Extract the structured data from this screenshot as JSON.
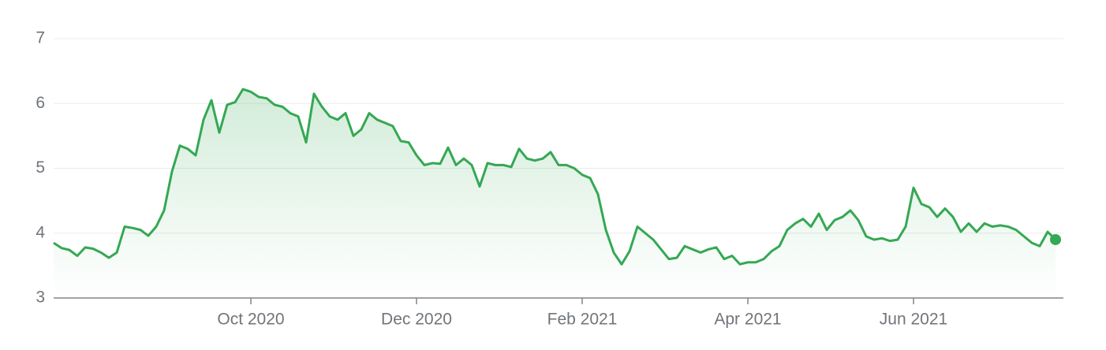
{
  "chart_data": {
    "type": "line",
    "categories": [
      null,
      null,
      null,
      null,
      null,
      null,
      null,
      null,
      null,
      null,
      null,
      null,
      null,
      null,
      null,
      null,
      null,
      null,
      null,
      null,
      null,
      null,
      null,
      null,
      null,
      "Oct 2020",
      null,
      null,
      null,
      null,
      null,
      null,
      null,
      null,
      null,
      null,
      null,
      null,
      null,
      null,
      null,
      null,
      null,
      null,
      null,
      null,
      "Dec 2020",
      null,
      null,
      null,
      null,
      null,
      null,
      null,
      null,
      null,
      null,
      null,
      null,
      null,
      null,
      null,
      null,
      null,
      null,
      null,
      null,
      "Feb 2021",
      null,
      null,
      null,
      null,
      null,
      null,
      null,
      null,
      null,
      null,
      null,
      null,
      null,
      null,
      null,
      null,
      null,
      null,
      null,
      null,
      "Apr 2021",
      null,
      null,
      null,
      null,
      null,
      null,
      null,
      null,
      null,
      null,
      null,
      null,
      null,
      null,
      null,
      null,
      null,
      null,
      null,
      null,
      "Jun 2021",
      null,
      null,
      null,
      null,
      null,
      null,
      null,
      null,
      null,
      null,
      null,
      null,
      null,
      null,
      null,
      null,
      null,
      null
    ],
    "values": [
      3.85,
      3.77,
      3.74,
      3.65,
      3.78,
      3.76,
      3.7,
      3.62,
      3.7,
      4.1,
      4.08,
      4.05,
      3.96,
      4.1,
      4.35,
      4.95,
      5.35,
      5.3,
      5.2,
      5.75,
      6.05,
      5.55,
      5.98,
      6.02,
      6.22,
      6.18,
      6.1,
      6.08,
      5.98,
      5.95,
      5.85,
      5.8,
      5.4,
      6.15,
      5.95,
      5.8,
      5.75,
      5.85,
      5.5,
      5.6,
      5.85,
      5.75,
      5.7,
      5.65,
      5.42,
      5.4,
      5.2,
      5.05,
      5.08,
      5.07,
      5.32,
      5.05,
      5.15,
      5.05,
      4.72,
      5.08,
      5.05,
      5.05,
      5.02,
      5.3,
      5.15,
      5.12,
      5.15,
      5.25,
      5.05,
      5.05,
      5.0,
      4.9,
      4.85,
      4.6,
      4.05,
      3.7,
      3.52,
      3.72,
      4.1,
      4.0,
      3.9,
      3.75,
      3.6,
      3.62,
      3.8,
      3.75,
      3.7,
      3.75,
      3.78,
      3.6,
      3.65,
      3.52,
      3.55,
      3.55,
      3.6,
      3.72,
      3.8,
      4.05,
      4.15,
      4.22,
      4.1,
      4.3,
      4.05,
      4.2,
      4.25,
      4.35,
      4.2,
      3.95,
      3.9,
      3.92,
      3.88,
      3.9,
      4.1,
      4.7,
      4.45,
      4.4,
      4.25,
      4.38,
      4.25,
      4.02,
      4.15,
      4.02,
      4.15,
      4.1,
      4.12,
      4.1,
      4.05,
      3.95,
      3.85,
      3.8,
      4.02,
      3.9
    ],
    "color": "#34a853",
    "ylim": [
      3,
      7
    ],
    "yticks": [
      3,
      4,
      5,
      6,
      7
    ],
    "grid": true
  }
}
